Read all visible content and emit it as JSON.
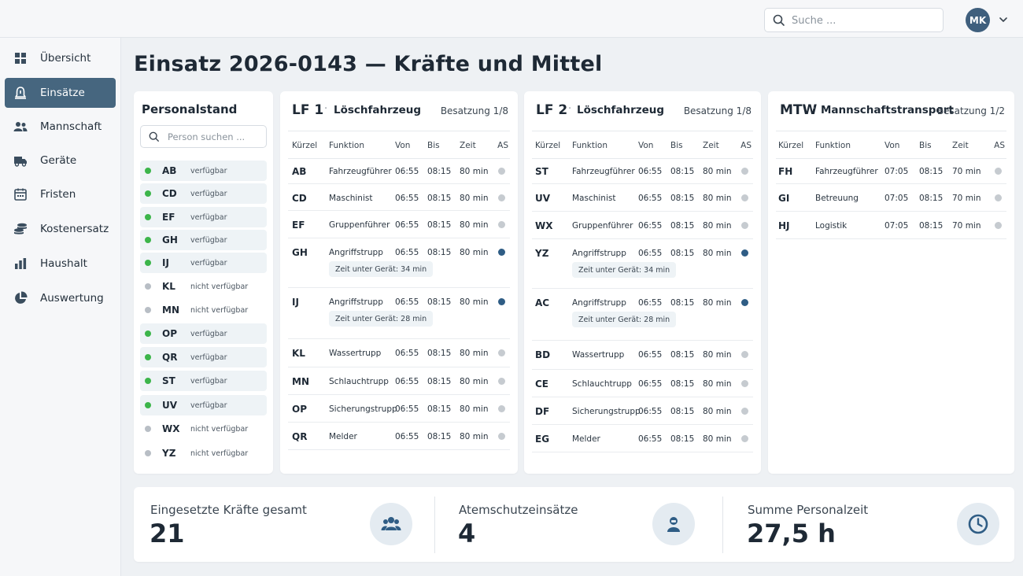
{
  "header": {
    "search_placeholder": "Suche ...",
    "user_initials": "MK"
  },
  "sidebar": {
    "items": [
      {
        "label": "Übersicht",
        "icon": "dashboard-grid-icon",
        "active": false
      },
      {
        "label": "Einsätze",
        "icon": "alarm-bell-icon",
        "active": true
      },
      {
        "label": "Mannschaft",
        "icon": "people-icon",
        "active": false
      },
      {
        "label": "Geräte",
        "icon": "truck-icon",
        "active": false
      },
      {
        "label": "Fristen",
        "icon": "calendar-icon",
        "active": false
      },
      {
        "label": "Kostenersatz",
        "icon": "coins-icon",
        "active": false
      },
      {
        "label": "Haushalt",
        "icon": "bar-chart-icon",
        "active": false
      },
      {
        "label": "Auswertung",
        "icon": "pie-chart-icon",
        "active": false
      }
    ]
  },
  "page": {
    "title": "Einsatz 2026-0143 — Kräfte und Mittel"
  },
  "personal": {
    "title": "Personalstand",
    "search_placeholder": "Person suchen ...",
    "rows": [
      {
        "kz": "AB",
        "status": "verfügbar",
        "available": true
      },
      {
        "kz": "CD",
        "status": "verfügbar",
        "available": true
      },
      {
        "kz": "EF",
        "status": "verfügbar",
        "available": true
      },
      {
        "kz": "GH",
        "status": "verfügbar",
        "available": true
      },
      {
        "kz": "IJ",
        "status": "verfügbar",
        "available": true
      },
      {
        "kz": "KL",
        "status": "nicht verfügbar",
        "available": false
      },
      {
        "kz": "MN",
        "status": "nicht verfügbar",
        "available": false
      },
      {
        "kz": "OP",
        "status": "verfügbar",
        "available": true
      },
      {
        "kz": "QR",
        "status": "verfügbar",
        "available": true
      },
      {
        "kz": "ST",
        "status": "verfügbar",
        "available": true
      },
      {
        "kz": "UV",
        "status": "verfügbar",
        "available": true
      },
      {
        "kz": "WX",
        "status": "nicht verfügbar",
        "available": false
      },
      {
        "kz": "YZ",
        "status": "nicht verfügbar",
        "available": false
      }
    ]
  },
  "columns": [
    "Kürzel",
    "Funktion",
    "Von",
    "Bis",
    "Zeit",
    "AS"
  ],
  "vehicles": [
    {
      "name": "LF 1",
      "type": "Löschfahrzeug",
      "besatzung": "Besatzung 1/8",
      "rows": [
        {
          "kz": "AB",
          "fn": "Fahrzeugführer",
          "von": "06:55",
          "bis": "08:15",
          "zeit": "80 min",
          "as": false
        },
        {
          "kz": "CD",
          "fn": "Maschinist",
          "von": "06:55",
          "bis": "08:15",
          "zeit": "80 min",
          "as": false
        },
        {
          "kz": "EF",
          "fn": "Gruppenführer",
          "von": "06:55",
          "bis": "08:15",
          "zeit": "80 min",
          "as": false
        },
        {
          "kz": "GH",
          "fn": "Angriffstrupp",
          "von": "06:55",
          "bis": "08:15",
          "zeit": "80 min",
          "as": true,
          "tug": "Zeit unter Gerät: 34 min"
        },
        {
          "kz": "IJ",
          "fn": "Angriffstrupp",
          "von": "06:55",
          "bis": "08:15",
          "zeit": "80 min",
          "as": true,
          "tug": "Zeit unter Gerät: 28 min"
        },
        {
          "kz": "KL",
          "fn": "Wassertrupp",
          "von": "06:55",
          "bis": "08:15",
          "zeit": "80 min",
          "as": false
        },
        {
          "kz": "MN",
          "fn": "Schlauchtrupp",
          "von": "06:55",
          "bis": "08:15",
          "zeit": "80 min",
          "as": false
        },
        {
          "kz": "OP",
          "fn": "Sicherungstrupp",
          "von": "06:55",
          "bis": "08:15",
          "zeit": "80 min",
          "as": false
        },
        {
          "kz": "QR",
          "fn": "Melder",
          "von": "06:55",
          "bis": "08:15",
          "zeit": "80 min",
          "as": false
        }
      ]
    },
    {
      "name": "LF 2",
      "type": "Löschfahrzeug",
      "besatzung": "Besatzung 1/8",
      "rows": [
        {
          "kz": "ST",
          "fn": "Fahrzeugführer",
          "von": "06:55",
          "bis": "08:15",
          "zeit": "80 min",
          "as": false
        },
        {
          "kz": "UV",
          "fn": "Maschinist",
          "von": "06:55",
          "bis": "08:15",
          "zeit": "80 min",
          "as": false
        },
        {
          "kz": "WX",
          "fn": "Gruppenführer",
          "von": "06:55",
          "bis": "08:15",
          "zeit": "80 min",
          "as": false
        },
        {
          "kz": "YZ",
          "fn": "Angriffstrupp",
          "von": "06:55",
          "bis": "08:15",
          "zeit": "80 min",
          "as": true,
          "tug": "Zeit unter Gerät: 34 min"
        },
        {
          "kz": "AC",
          "fn": "Angriffstrupp",
          "von": "06:55",
          "bis": "08:15",
          "zeit": "80 min",
          "as": true,
          "tug": "Zeit unter Gerät: 28 min"
        },
        {
          "kz": "BD",
          "fn": "Wassertrupp",
          "von": "06:55",
          "bis": "08:15",
          "zeit": "80 min",
          "as": false
        },
        {
          "kz": "CE",
          "fn": "Schlauchtrupp",
          "von": "06:55",
          "bis": "08:15",
          "zeit": "80 min",
          "as": false
        },
        {
          "kz": "DF",
          "fn": "Sicherungstrupp",
          "von": "06:55",
          "bis": "08:15",
          "zeit": "80 min",
          "as": false
        },
        {
          "kz": "EG",
          "fn": "Melder",
          "von": "06:55",
          "bis": "08:15",
          "zeit": "80 min",
          "as": false
        }
      ]
    },
    {
      "name": "MTW",
      "type": "Mannschaftstransport",
      "besatzung": "Besatzung 1/2",
      "rows": [
        {
          "kz": "FH",
          "fn": "Fahrzeugführer",
          "von": "07:05",
          "bis": "08:15",
          "zeit": "70 min",
          "as": false
        },
        {
          "kz": "GI",
          "fn": "Betreuung",
          "von": "07:05",
          "bis": "08:15",
          "zeit": "70 min",
          "as": false
        },
        {
          "kz": "HJ",
          "fn": "Logistik",
          "von": "07:05",
          "bis": "08:15",
          "zeit": "70 min",
          "as": false
        }
      ]
    }
  ],
  "summary": [
    {
      "label": "Eingesetzte Kräfte gesamt",
      "value": "21",
      "icon": "group-icon"
    },
    {
      "label": "Atemschutzeinsätze",
      "value": "4",
      "icon": "breathing-apparatus-icon"
    },
    {
      "label": "Summe Personalzeit",
      "value": "27,5 h",
      "icon": "clock-icon"
    }
  ],
  "colors": {
    "accent": "#46667f",
    "available": "#3cb54a",
    "unavailable": "#b8bec5",
    "as_active": "#2f5d85",
    "as_inactive": "#c6cbd0"
  }
}
